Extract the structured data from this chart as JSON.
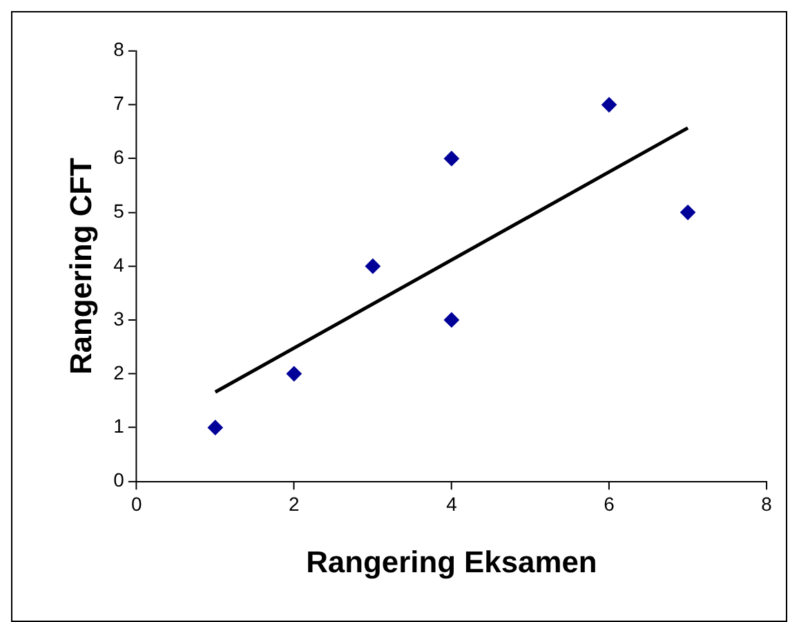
{
  "chart_data": {
    "type": "scatter",
    "xlabel": "Rangering Eksamen",
    "ylabel": "Rangering CFT",
    "grid": false,
    "legend": false,
    "xlim": [
      0,
      8
    ],
    "xticks": [
      0,
      2,
      4,
      6,
      8
    ],
    "ylim": [
      0,
      8
    ],
    "yticks": [
      0,
      1,
      2,
      3,
      4,
      5,
      6,
      7,
      8
    ],
    "series": [
      {
        "type": "scatter",
        "marker": "diamond",
        "color": "#000099",
        "x": [
          1,
          2,
          3,
          4,
          4,
          6,
          7
        ],
        "values": [
          1,
          2,
          4,
          3,
          6,
          7,
          5
        ]
      },
      {
        "type": "line",
        "marker": "none",
        "color": "#000000",
        "x": [
          1,
          7
        ],
        "values": [
          1.66,
          6.57
        ]
      }
    ]
  }
}
